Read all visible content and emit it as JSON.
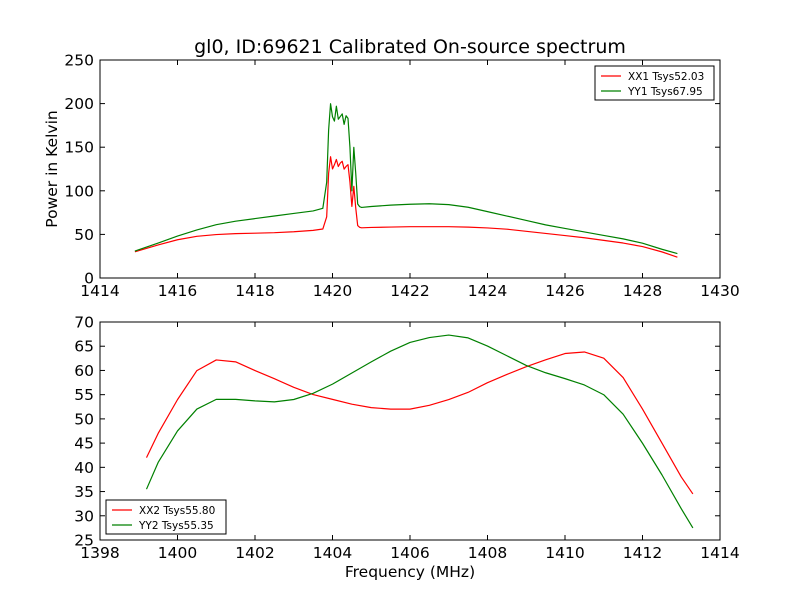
{
  "chart_data": [
    {
      "type": "line",
      "title": "gl0, ID:69621 Calibrated On-source spectrum",
      "xlabel": "",
      "ylabel": "Power in Kelvin",
      "xlim": [
        1414,
        1430
      ],
      "ylim": [
        0,
        250
      ],
      "xticks": [
        "1414",
        "1416",
        "1418",
        "1420",
        "1422",
        "1424",
        "1426",
        "1428",
        "1430"
      ],
      "yticks": [
        "0",
        "50",
        "100",
        "150",
        "200",
        "250"
      ],
      "legend_position": "top-right",
      "grid": false,
      "series": [
        {
          "name": "XX1 Tsys52.03",
          "color": "#ff0000",
          "x": [
            1414.9,
            1415.5,
            1416.0,
            1416.5,
            1417.0,
            1417.5,
            1418.0,
            1418.5,
            1419.0,
            1419.5,
            1419.75,
            1419.85,
            1419.9,
            1419.95,
            1420.0,
            1420.05,
            1420.1,
            1420.15,
            1420.2,
            1420.25,
            1420.3,
            1420.35,
            1420.4,
            1420.45,
            1420.5,
            1420.55,
            1420.6,
            1420.65,
            1420.7,
            1420.75,
            1421.0,
            1421.5,
            1422.0,
            1422.5,
            1423.0,
            1423.5,
            1424.0,
            1424.5,
            1425.0,
            1425.5,
            1426.0,
            1426.5,
            1427.0,
            1427.5,
            1428.0,
            1428.5,
            1428.9
          ],
          "y": [
            30,
            38,
            44,
            48,
            50,
            51,
            51.5,
            52,
            53,
            54.5,
            56,
            70,
            120,
            139,
            125,
            130,
            136,
            128,
            132,
            134,
            125,
            128,
            130,
            110,
            82,
            105,
            80,
            60,
            58,
            57.5,
            58,
            58.5,
            59,
            59,
            59,
            58.5,
            57.5,
            56,
            53.5,
            51,
            48.5,
            46,
            43,
            40,
            36,
            30,
            24
          ]
        },
        {
          "name": "YY1 Tsys67.95",
          "color": "#008000",
          "x": [
            1414.9,
            1415.5,
            1416.0,
            1416.5,
            1417.0,
            1417.5,
            1418.0,
            1418.5,
            1419.0,
            1419.5,
            1419.75,
            1419.85,
            1419.9,
            1419.95,
            1420.0,
            1420.05,
            1420.1,
            1420.15,
            1420.2,
            1420.25,
            1420.3,
            1420.35,
            1420.4,
            1420.45,
            1420.5,
            1420.55,
            1420.6,
            1420.65,
            1420.7,
            1420.75,
            1421.0,
            1421.5,
            1422.0,
            1422.5,
            1423.0,
            1423.5,
            1424.0,
            1424.5,
            1425.0,
            1425.5,
            1426.0,
            1426.5,
            1427.0,
            1427.5,
            1428.0,
            1428.5,
            1428.9
          ],
          "y": [
            31,
            40,
            48,
            55,
            61,
            65,
            68,
            71,
            74,
            77,
            80,
            110,
            170,
            200,
            185,
            180,
            197,
            182,
            185,
            188,
            176,
            186,
            183,
            150,
            100,
            150,
            120,
            85,
            82,
            81,
            82,
            83.5,
            84.5,
            85,
            84,
            81,
            76,
            71,
            66,
            61,
            57,
            53,
            49,
            45,
            40,
            33,
            28
          ]
        }
      ]
    },
    {
      "type": "line",
      "title": "",
      "xlabel": "Frequency (MHz)",
      "ylabel": "",
      "xlim": [
        1398,
        1414
      ],
      "ylim": [
        25,
        70
      ],
      "xticks": [
        "1398",
        "1400",
        "1402",
        "1404",
        "1406",
        "1408",
        "1410",
        "1412",
        "1414"
      ],
      "yticks": [
        "25",
        "30",
        "35",
        "40",
        "45",
        "50",
        "55",
        "60",
        "65",
        "70"
      ],
      "legend_position": "bottom-left",
      "grid": false,
      "series": [
        {
          "name": "XX2 Tsys55.80",
          "color": "#ff0000",
          "x": [
            1399.2,
            1399.5,
            1400.0,
            1400.5,
            1401.0,
            1401.5,
            1402.0,
            1402.5,
            1403.0,
            1403.5,
            1404.0,
            1404.5,
            1405.0,
            1405.5,
            1406.0,
            1406.5,
            1407.0,
            1407.5,
            1408.0,
            1408.5,
            1409.0,
            1409.5,
            1410.0,
            1410.5,
            1411.0,
            1411.5,
            1412.0,
            1412.5,
            1413.0,
            1413.3
          ],
          "y": [
            42,
            47,
            54,
            60,
            62.2,
            61.8,
            60,
            58.3,
            56.5,
            55,
            54,
            53,
            52.3,
            52,
            52,
            52.8,
            54,
            55.5,
            57.5,
            59.2,
            60.8,
            62.2,
            63.5,
            63.8,
            62.5,
            58.5,
            52,
            45,
            38,
            34.5
          ]
        },
        {
          "name": "YY2 Tsys55.35",
          "color": "#008000",
          "x": [
            1399.2,
            1399.5,
            1400.0,
            1400.5,
            1401.0,
            1401.5,
            1402.0,
            1402.5,
            1403.0,
            1403.5,
            1404.0,
            1404.5,
            1405.0,
            1405.5,
            1406.0,
            1406.5,
            1407.0,
            1407.5,
            1408.0,
            1408.5,
            1409.0,
            1409.5,
            1410.0,
            1410.5,
            1411.0,
            1411.5,
            1412.0,
            1412.5,
            1413.0,
            1413.3
          ],
          "y": [
            35.5,
            41,
            47.5,
            52,
            54,
            54,
            53.7,
            53.5,
            54,
            55.3,
            57.2,
            59.5,
            61.8,
            64,
            65.8,
            66.8,
            67.3,
            66.7,
            65,
            63,
            61,
            59.5,
            58.3,
            57,
            55,
            51,
            45,
            38.5,
            31.5,
            27.5
          ]
        }
      ]
    }
  ]
}
